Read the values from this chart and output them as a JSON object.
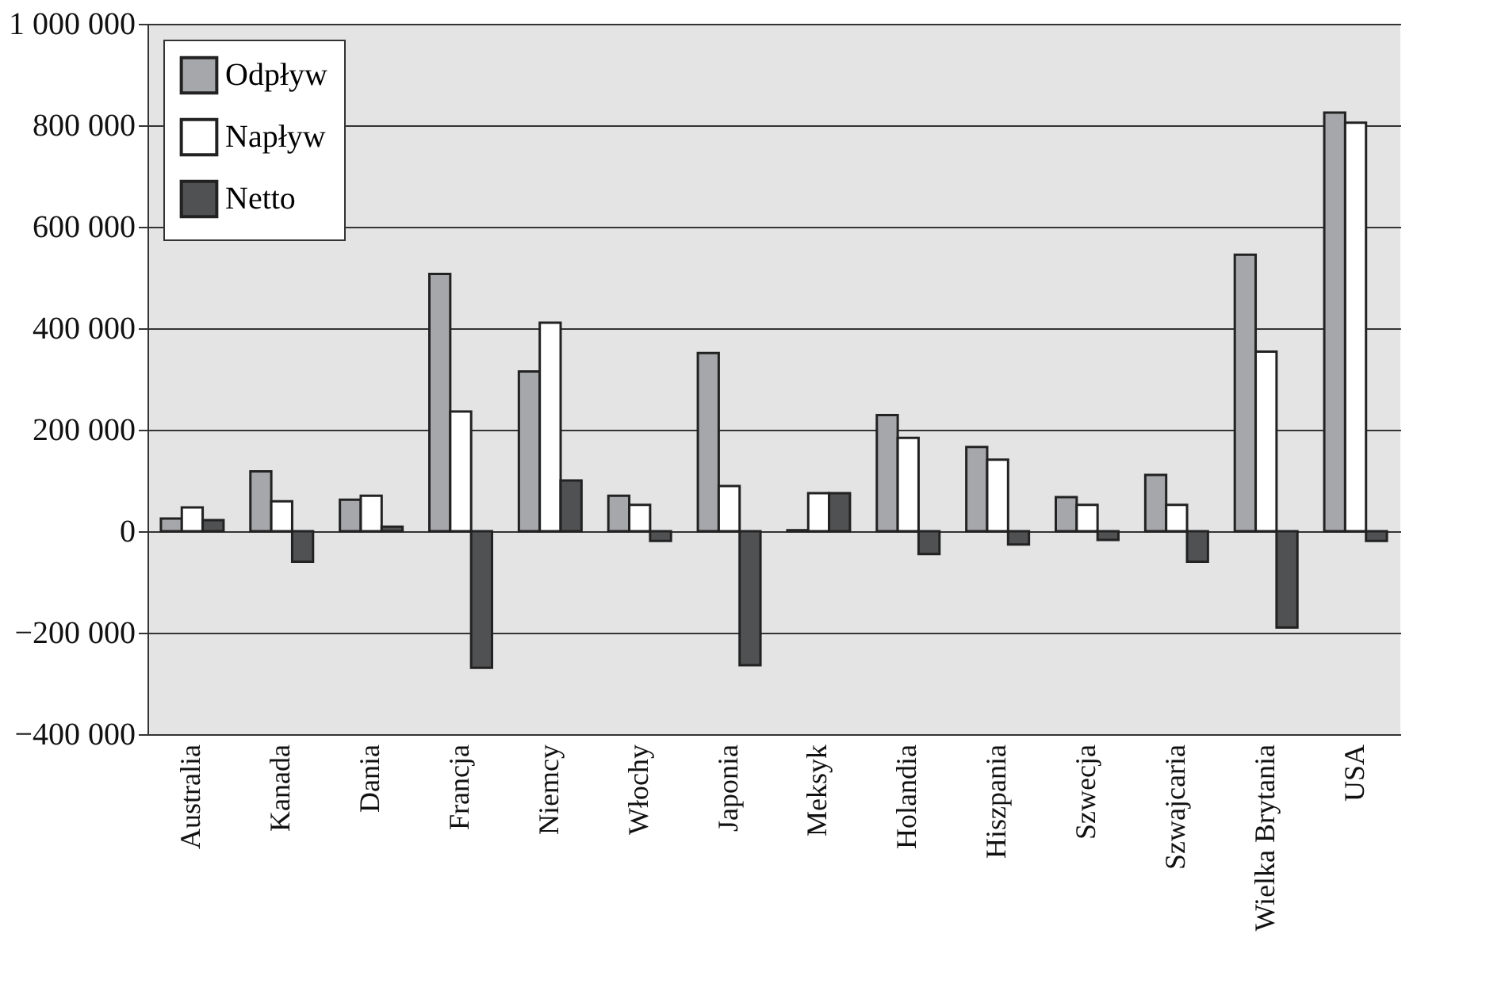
{
  "chart_data": {
    "type": "bar",
    "categories": [
      "Australia",
      "Kanada",
      "Dania",
      "Francja",
      "Niemcy",
      "Włochy",
      "Japonia",
      "Meksyk",
      "Holandia",
      "Hiszpania",
      "Szwecja",
      "Szwajcaria",
      "Wielka Brytania",
      "USA"
    ],
    "series": [
      {
        "name": "Odpływ",
        "color": "#a6a7ab",
        "values": [
          25000,
          118000,
          62000,
          507000,
          315000,
          70000,
          351000,
          2000,
          229000,
          166000,
          67000,
          111000,
          545000,
          825000
        ]
      },
      {
        "name": "Napływ",
        "color": "#ffffff",
        "values": [
          47000,
          59000,
          70000,
          236000,
          411000,
          52000,
          89000,
          75000,
          184000,
          141000,
          52000,
          52000,
          354000,
          805000
        ]
      },
      {
        "name": "Netto",
        "color": "#505153",
        "values": [
          22000,
          -60000,
          9000,
          -269000,
          100000,
          -19000,
          -264000,
          75000,
          -45000,
          -26000,
          -17000,
          -60000,
          -190000,
          -19000
        ]
      }
    ],
    "ylim": [
      -400000,
      1000000
    ],
    "yticks": [
      {
        "value": -400000,
        "label": "−400 000"
      },
      {
        "value": -200000,
        "label": "−200 000"
      },
      0,
      {
        "value": 200000,
        "label": "200 000"
      },
      {
        "value": 400000,
        "label": "400 000"
      },
      {
        "value": 600000,
        "label": "600 000"
      },
      {
        "value": 800000,
        "label": "800 000"
      },
      {
        "value": 1000000,
        "label": "1 000 000"
      }
    ],
    "grid": "y",
    "legend": "top left"
  }
}
